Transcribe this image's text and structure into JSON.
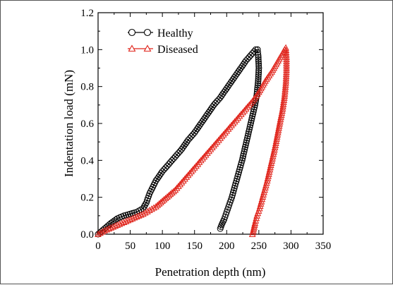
{
  "chart_data": {
    "type": "scatter",
    "title": "",
    "xlabel": "Penetration depth (nm)",
    "ylabel": "Indentation load (mN)",
    "xlim": [
      0,
      350
    ],
    "ylim": [
      0,
      1.2
    ],
    "xticks": [
      "0",
      "50",
      "100",
      "150",
      "200",
      "250",
      "300",
      "350"
    ],
    "yticks": [
      "0.0",
      "0.2",
      "0.4",
      "0.6",
      "0.8",
      "1.0",
      "1.2"
    ],
    "grid": false,
    "legend_position": "top-left",
    "series": [
      {
        "name": "Healthy",
        "marker": "circle-open",
        "color": "#000000",
        "loading": {
          "x": [
            0,
            10,
            20,
            30,
            40,
            50,
            60,
            70,
            75,
            80,
            90,
            100,
            110,
            120,
            130,
            140,
            150,
            160,
            170,
            180,
            190,
            200,
            210,
            220,
            230,
            240,
            245,
            248
          ],
          "y": [
            0.0,
            0.03,
            0.06,
            0.085,
            0.1,
            0.11,
            0.12,
            0.14,
            0.17,
            0.22,
            0.29,
            0.34,
            0.38,
            0.42,
            0.46,
            0.51,
            0.55,
            0.6,
            0.65,
            0.7,
            0.74,
            0.79,
            0.84,
            0.89,
            0.94,
            0.98,
            1.0,
            1.0
          ]
        },
        "unloading": {
          "x": [
            248,
            249,
            250,
            249,
            247,
            244,
            240,
            236,
            232,
            228,
            224,
            220,
            216,
            212,
            208,
            204,
            200,
            196,
            192,
            190
          ],
          "y": [
            1.0,
            0.97,
            0.9,
            0.83,
            0.76,
            0.7,
            0.64,
            0.58,
            0.52,
            0.46,
            0.4,
            0.35,
            0.3,
            0.25,
            0.2,
            0.16,
            0.12,
            0.08,
            0.05,
            0.03
          ]
        }
      },
      {
        "name": "Diseased",
        "marker": "triangle-open",
        "color": "#e0241b",
        "loading": {
          "x": [
            0,
            10,
            20,
            30,
            40,
            50,
            60,
            70,
            80,
            90,
            100,
            110,
            120,
            130,
            140,
            150,
            160,
            170,
            180,
            190,
            200,
            210,
            220,
            230,
            240,
            250,
            260,
            270,
            280,
            290
          ],
          "y": [
            0.0,
            0.02,
            0.035,
            0.05,
            0.065,
            0.08,
            0.095,
            0.11,
            0.13,
            0.15,
            0.18,
            0.21,
            0.24,
            0.28,
            0.32,
            0.36,
            0.4,
            0.44,
            0.48,
            0.52,
            0.56,
            0.6,
            0.64,
            0.68,
            0.72,
            0.77,
            0.83,
            0.88,
            0.94,
            1.0
          ]
        },
        "unloading": {
          "x": [
            292,
            293,
            293,
            292,
            290,
            287,
            283,
            279,
            275,
            271,
            267,
            263,
            259,
            255,
            251,
            247,
            244,
            242,
            240
          ],
          "y": [
            1.01,
            0.96,
            0.89,
            0.82,
            0.75,
            0.68,
            0.61,
            0.54,
            0.47,
            0.41,
            0.35,
            0.29,
            0.24,
            0.19,
            0.14,
            0.1,
            0.06,
            0.03,
            0.0
          ]
        }
      }
    ]
  }
}
